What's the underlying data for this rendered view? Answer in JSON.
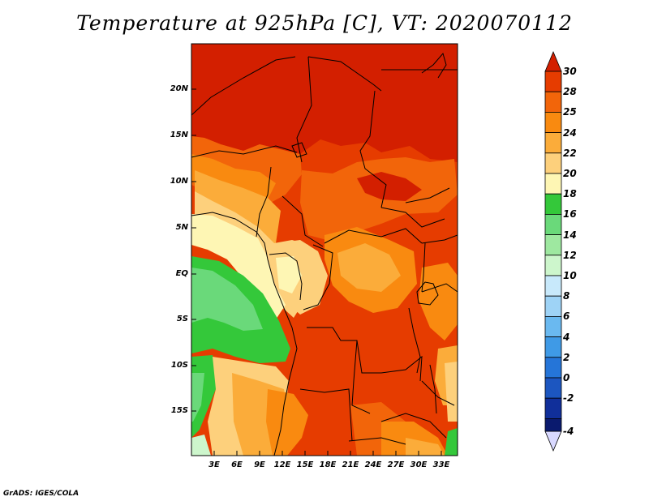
{
  "title": "Temperature at 925hPa [C], VT: 2020070112",
  "lat_labels": [
    "20N",
    "15N",
    "10N",
    "5N",
    "EQ",
    "5S",
    "10S",
    "15S"
  ],
  "lon_labels": [
    "3E",
    "6E",
    "9E",
    "12E",
    "15E",
    "18E",
    "21E",
    "24E",
    "27E",
    "30E",
    "33E"
  ],
  "colorbar": {
    "labels": [
      "30",
      "28",
      "25",
      "24",
      "22",
      "20",
      "18",
      "16",
      "14",
      "12",
      "10",
      "8",
      "6",
      "4",
      "2",
      "0",
      "-2",
      "-4"
    ],
    "colors": {
      "c30_up": "#d31f00",
      "c28_30": "#e63c00",
      "c25_28": "#f2650a",
      "c24_25": "#f98a10",
      "c22_24": "#fbac3a",
      "c20_22": "#fdd07c",
      "c18_20": "#fef6b4",
      "c16_18": "#34c83a",
      "c14_16": "#6ad97a",
      "c12_14": "#9ee8a0",
      "c10_12": "#cdf6cc",
      "c8_10": "#c8e9fb",
      "c6_8": "#9ed3f6",
      "c4_6": "#6ab9f0",
      "c2_4": "#3f9ae6",
      "c0_2": "#2575d8",
      "cm2_0": "#1c56c0",
      "cm4_m2": "#102f9a",
      "below": "#d9d9ff"
    }
  },
  "footer": "GrADS: IGES/COLA"
}
